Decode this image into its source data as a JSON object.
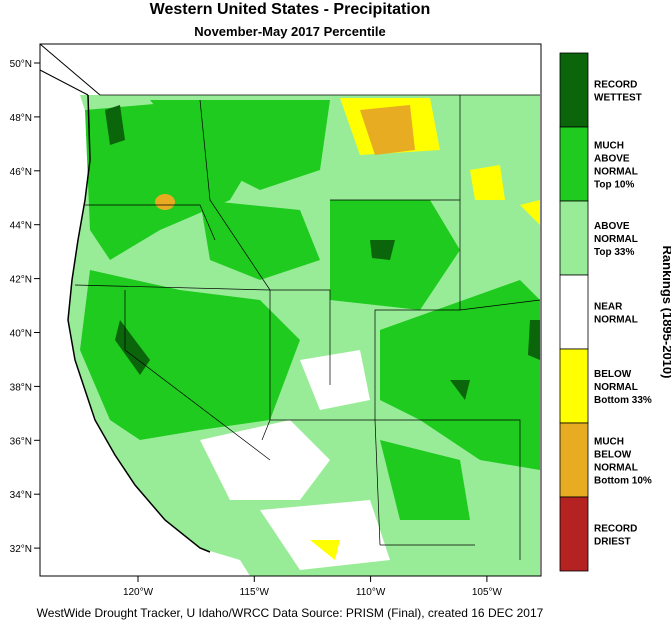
{
  "header": {
    "title": "Western United States - Precipitation",
    "subtitle": "November-May 2017 Percentile"
  },
  "map": {
    "lat_labels": [
      "50°N",
      "48°N",
      "46°N",
      "44°N",
      "42°N",
      "40°N",
      "38°N",
      "36°N",
      "34°N",
      "32°N"
    ],
    "lon_labels": [
      "120°W",
      "115°W",
      "110°W",
      "105°W"
    ]
  },
  "legend": {
    "title": "Rankings (1895-2010)",
    "items": [
      {
        "lines": [
          "RECORD",
          "WETTEST"
        ],
        "color": "#0b650b"
      },
      {
        "lines": [
          "MUCH",
          "ABOVE",
          "NORMAL",
          "Top 10%"
        ],
        "color": "#1ecb1e"
      },
      {
        "lines": [
          "ABOVE",
          "NORMAL",
          "Top 33%"
        ],
        "color": "#98ec98"
      },
      {
        "lines": [
          "NEAR",
          "NORMAL"
        ],
        "color": "#ffffff"
      },
      {
        "lines": [
          "BELOW",
          "NORMAL",
          "Bottom 33%"
        ],
        "color": "#ffff00"
      },
      {
        "lines": [
          "MUCH",
          "BELOW",
          "NORMAL",
          "Bottom 10%"
        ],
        "color": "#e8ac22"
      },
      {
        "lines": [
          "RECORD",
          "DRIEST"
        ],
        "color": "#b42222"
      }
    ]
  },
  "footer": "WestWide Drought Tracker, U Idaho/WRCC Data Source: PRISM (Final), created 16 DEC 2017"
}
